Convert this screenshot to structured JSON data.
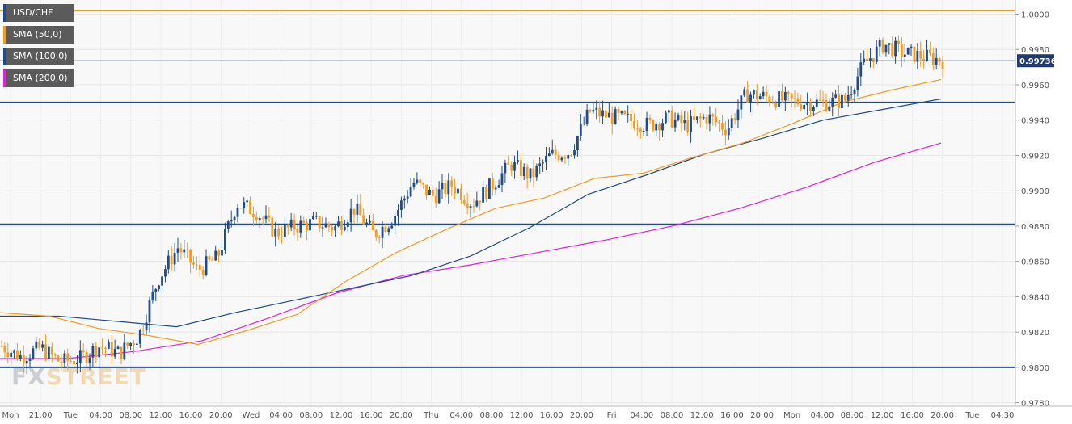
{
  "chart_data": {
    "type": "candlestick",
    "symbol": "USD/CHF",
    "legend": [
      {
        "label": "USD/CHF",
        "color": "#1e4c8c"
      },
      {
        "label": "SMA (50,0)",
        "color": "#f39c1f"
      },
      {
        "label": "SMA (100,0)",
        "color": "#1e4c8c"
      },
      {
        "label": "SMA (200,0)",
        "color": "#e020e0"
      }
    ],
    "y_ticks": [
      "1.0000",
      "0.9980",
      "0.9960",
      "0.9940",
      "0.9920",
      "0.9900",
      "0.9880",
      "0.9860",
      "0.9840",
      "0.9820",
      "0.9800",
      "0.9780"
    ],
    "ylim": [
      0.9778,
      1.0008
    ],
    "x_ticks": [
      "Mon",
      "21:00",
      "Tue",
      "04:00",
      "08:00",
      "12:00",
      "16:00",
      "20:00",
      "Wed",
      "04:00",
      "08:00",
      "12:00",
      "16:00",
      "20:00",
      "Thu",
      "04:00",
      "08:00",
      "12:00",
      "16:00",
      "20:00",
      "Fri",
      "04:00",
      "08:00",
      "12:00",
      "16:00",
      "20:00",
      "Mon",
      "04:00",
      "08:00",
      "12:00",
      "16:00",
      "20:00",
      "Tue",
      "04:30"
    ],
    "current_price": "0.99736",
    "horizontal_levels": [
      {
        "value": 1.0002,
        "color": "#f39c1f"
      },
      {
        "value": 0.995,
        "color": "#1e4c8c"
      },
      {
        "value": 0.9881,
        "color": "#1e4c8c"
      },
      {
        "value": 0.98,
        "color": "#1e4c8c"
      }
    ],
    "sma50": [
      0.9831,
      0.9829,
      0.9822,
      0.9818,
      0.9813,
      0.9821,
      0.983,
      0.9849,
      0.9865,
      0.9878,
      0.989,
      0.9896,
      0.9907,
      0.991,
      0.9919,
      0.9927,
      0.9938,
      0.995,
      0.9957,
      0.9963
    ],
    "sma100": [
      0.9829,
      0.9829,
      0.9826,
      0.9823,
      0.9831,
      0.9838,
      0.9845,
      0.9852,
      0.9863,
      0.9879,
      0.9898,
      0.9909,
      0.9921,
      0.993,
      0.994,
      0.9946,
      0.9952
    ],
    "sma200": [
      0.9805,
      0.9805,
      0.9809,
      0.9815,
      0.9828,
      0.9842,
      0.9852,
      0.9858,
      0.9865,
      0.9872,
      0.988,
      0.989,
      0.9902,
      0.9916,
      0.9927
    ],
    "price_path": [
      0.9812,
      0.9806,
      0.9811,
      0.9803,
      0.9805,
      0.9812,
      0.9808,
      0.9818,
      0.985,
      0.9868,
      0.9855,
      0.9862,
      0.9893,
      0.9888,
      0.9876,
      0.988,
      0.9882,
      0.9879,
      0.989,
      0.9875,
      0.9885,
      0.9905,
      0.9897,
      0.9903,
      0.9893,
      0.9903,
      0.9915,
      0.9908,
      0.992,
      0.9922,
      0.9945,
      0.9942,
      0.994,
      0.9937,
      0.9941,
      0.9937,
      0.9942,
      0.9935,
      0.9955,
      0.9953,
      0.9951,
      0.995,
      0.995,
      0.9951,
      0.9972,
      0.9983,
      0.9978,
      0.9976,
      0.9974
    ]
  },
  "watermark": {
    "part1": "FX",
    "part2": "STREET"
  }
}
